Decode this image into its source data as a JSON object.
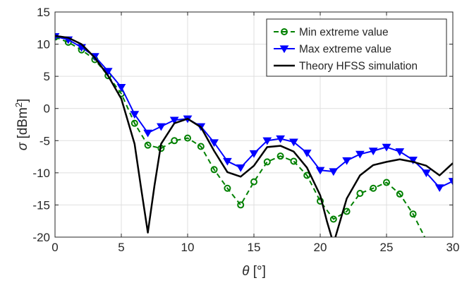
{
  "chart_data": {
    "type": "line",
    "xlabel": "θ [°]",
    "ylabel": "σ [dBm²]",
    "ylabel_parts": {
      "sym": "σ",
      "open": " [dBm",
      "sup": "2",
      "close": "]"
    },
    "xlabel_parts": {
      "sym": "θ",
      "rest": " [°]"
    },
    "xlim": [
      0,
      30
    ],
    "ylim": [
      -20,
      15
    ],
    "xticks": [
      0,
      5,
      10,
      15,
      20,
      25,
      30
    ],
    "yticks": [
      -20,
      -15,
      -10,
      -5,
      0,
      5,
      10,
      15
    ],
    "xtick_labels": [
      "0",
      "5",
      "10",
      "15",
      "20",
      "25",
      "30"
    ],
    "ytick_labels": [
      "-20",
      "-15",
      "-10",
      "-5",
      "0",
      "5",
      "10",
      "15"
    ],
    "grid": true,
    "legend_position": "top-right",
    "series": [
      {
        "name": "Min extreme value",
        "color": "#008000",
        "line_style": "dashed",
        "marker": "circle",
        "x": [
          0,
          1,
          2,
          3,
          4,
          5,
          6,
          7,
          8,
          9,
          10,
          11,
          12,
          13,
          14,
          15,
          16,
          17,
          18,
          19,
          20,
          21,
          22,
          23,
          24,
          25,
          26,
          27,
          28,
          29,
          30
        ],
        "y": [
          11.1,
          10.3,
          9.1,
          7.6,
          5.1,
          2.3,
          -2.3,
          -5.7,
          -6.2,
          -5.0,
          -4.6,
          -5.9,
          -9.5,
          -12.4,
          -15.0,
          -11.4,
          -8.3,
          -7.4,
          -8.2,
          -10.4,
          -14.4,
          -17.2,
          -16.0,
          -13.2,
          -12.4,
          -11.5,
          -13.3,
          -16.4,
          -20.5,
          -21.5,
          -21.5
        ]
      },
      {
        "name": "Max extreme value",
        "color": "#0000ff",
        "line_style": "solid",
        "marker": "triangle-down",
        "x": [
          0,
          1,
          2,
          3,
          4,
          5,
          6,
          7,
          8,
          9,
          10,
          11,
          12,
          13,
          14,
          15,
          16,
          17,
          18,
          19,
          20,
          21,
          22,
          23,
          24,
          25,
          26,
          27,
          28,
          29,
          30
        ],
        "y": [
          11.2,
          10.7,
          9.5,
          8.1,
          5.8,
          3.3,
          -0.9,
          -3.8,
          -2.8,
          -1.8,
          -1.6,
          -2.8,
          -5.3,
          -8.2,
          -9.2,
          -7.0,
          -5.0,
          -4.7,
          -5.2,
          -6.9,
          -9.6,
          -9.8,
          -8.1,
          -7.1,
          -6.6,
          -6.0,
          -6.7,
          -8.0,
          -10.0,
          -12.3,
          -11.3
        ]
      },
      {
        "name": "Theory HFSS simulation",
        "color": "#000000",
        "line_style": "solid",
        "marker": "none",
        "x": [
          0,
          1,
          2,
          3,
          4,
          5,
          6,
          6.5,
          7,
          7.5,
          8,
          9,
          10,
          11,
          12,
          13,
          14,
          15,
          16,
          17,
          18,
          19,
          20,
          20.5,
          21,
          21.5,
          22,
          23,
          24,
          25,
          26,
          27,
          28,
          29,
          30
        ],
        "y": [
          11.3,
          11.0,
          10.0,
          7.9,
          5.1,
          1.5,
          -5.5,
          -12.5,
          -19.3,
          -12.0,
          -5.5,
          -2.3,
          -1.6,
          -2.9,
          -6.6,
          -9.9,
          -10.6,
          -8.9,
          -6.0,
          -5.8,
          -6.7,
          -9.2,
          -13.5,
          -17.5,
          -21.0,
          -17.5,
          -14.0,
          -10.4,
          -8.8,
          -8.3,
          -7.9,
          -8.3,
          -8.9,
          -10.4,
          -8.5
        ]
      }
    ]
  }
}
